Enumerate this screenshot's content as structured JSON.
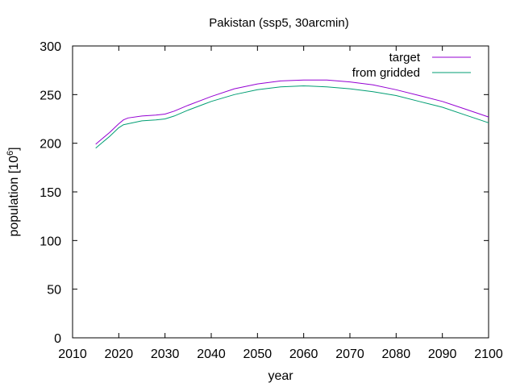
{
  "chart_data": {
    "type": "line",
    "title": "Pakistan (ssp5, 30arcmin)",
    "xlabel": "year",
    "ylabel_main": "population [10",
    "ylabel_sup": "6",
    "ylabel_close": "]",
    "xlim": [
      2010,
      2100
    ],
    "ylim": [
      0,
      300
    ],
    "xticks": [
      2010,
      2020,
      2030,
      2040,
      2050,
      2060,
      2070,
      2080,
      2090,
      2100
    ],
    "yticks": [
      0,
      50,
      100,
      150,
      200,
      250,
      300
    ],
    "legend_position": "top-right",
    "grid": false,
    "series": [
      {
        "name": "target",
        "color": "#9400d3",
        "x": [
          2015,
          2016,
          2018,
          2020,
          2021,
          2022,
          2025,
          2028,
          2030,
          2032,
          2035,
          2040,
          2045,
          2050,
          2055,
          2060,
          2065,
          2070,
          2075,
          2080,
          2085,
          2090,
          2095,
          2100
        ],
        "y": [
          199,
          203,
          211,
          220,
          224,
          226,
          228,
          229,
          230,
          233,
          239,
          248,
          256,
          261,
          264,
          265,
          265,
          263,
          260,
          255,
          249,
          243,
          235,
          227
        ]
      },
      {
        "name": "from gridded",
        "color": "#009e73",
        "x": [
          2015,
          2016,
          2018,
          2020,
          2021,
          2022,
          2025,
          2028,
          2030,
          2032,
          2035,
          2040,
          2045,
          2050,
          2055,
          2060,
          2065,
          2070,
          2075,
          2080,
          2085,
          2090,
          2095,
          2100
        ],
        "y": [
          195,
          199,
          207,
          216,
          219,
          220,
          223,
          224,
          225,
          228,
          234,
          243,
          250,
          255,
          258,
          259,
          258,
          256,
          253,
          249,
          243,
          237,
          229,
          221
        ]
      }
    ]
  }
}
